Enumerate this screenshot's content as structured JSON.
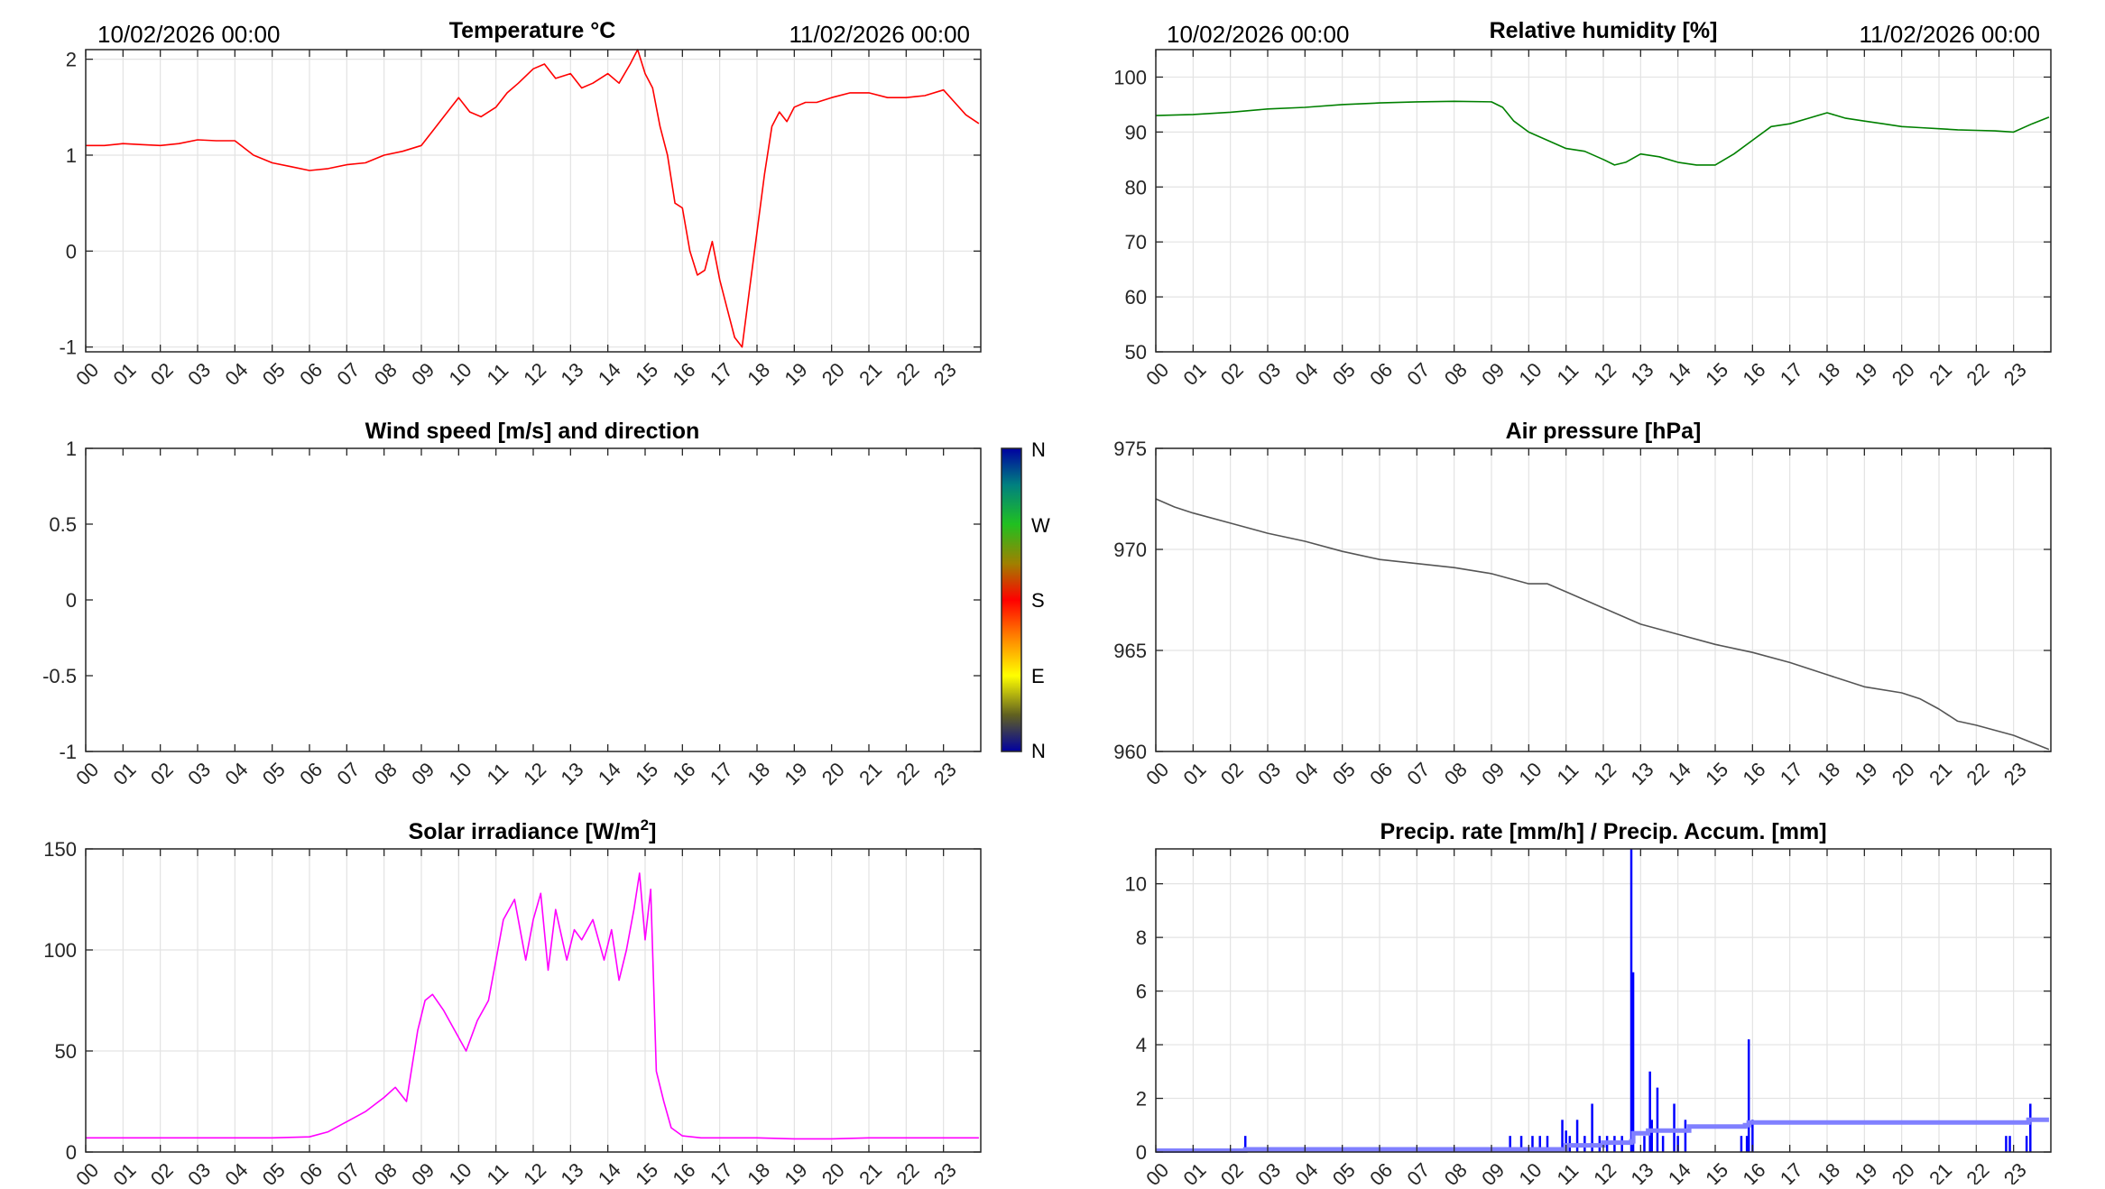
{
  "header": {
    "start_datetime": "10/02/2026 00:00",
    "end_datetime": "11/02/2026 00:00"
  },
  "hour_ticks": [
    "00",
    "01",
    "02",
    "03",
    "04",
    "05",
    "06",
    "07",
    "08",
    "09",
    "10",
    "11",
    "12",
    "13",
    "14",
    "15",
    "16",
    "17",
    "18",
    "19",
    "20",
    "21",
    "22",
    "23"
  ],
  "colors": {
    "temperature": "#ff0000",
    "humidity": "#008000",
    "pressure": "#555555",
    "solar": "#ff00ff",
    "precip_rate": "#0000ff",
    "precip_accum": "#8080ff",
    "grid": "#e3e3e3",
    "axes": "#262626"
  },
  "wind": {
    "colorbar_labels": [
      "N",
      "W",
      "S",
      "E",
      "N"
    ]
  },
  "chart_data": [
    {
      "id": "temperature",
      "type": "line",
      "title": "Temperature °C",
      "xlabel": "",
      "ylabel": "",
      "xlim": [
        0,
        24
      ],
      "ylim": [
        -1.05,
        2.1
      ],
      "yticks": [
        -1,
        0,
        1,
        2
      ],
      "ytick_labels": [
        "-1",
        "0",
        "1",
        "2"
      ],
      "grid": true,
      "series": [
        {
          "x": [
            0,
            0.5,
            1,
            1.5,
            2,
            2.5,
            3,
            3.5,
            4,
            4.5,
            5,
            5.5,
            6,
            6.5,
            7,
            7.5,
            8,
            8.5,
            9,
            9.3,
            9.6,
            10,
            10.3,
            10.6,
            11,
            11.3,
            11.6,
            12,
            12.3,
            12.6,
            13,
            13.3,
            13.6,
            14,
            14.3,
            14.6,
            14.8,
            15,
            15.2,
            15.4,
            15.6,
            15.8,
            16,
            16.2,
            16.4,
            16.6,
            16.8,
            17,
            17.2,
            17.4,
            17.6,
            17.8,
            18,
            18.2,
            18.4,
            18.6,
            18.8,
            19,
            19.3,
            19.6,
            20,
            20.5,
            21,
            21.5,
            22,
            22.5,
            23,
            23.3,
            23.6,
            23.95
          ],
          "y": [
            1.1,
            1.1,
            1.12,
            1.11,
            1.1,
            1.12,
            1.16,
            1.15,
            1.15,
            1.0,
            0.92,
            0.88,
            0.84,
            0.86,
            0.9,
            0.92,
            1.0,
            1.04,
            1.1,
            1.25,
            1.4,
            1.6,
            1.45,
            1.4,
            1.5,
            1.65,
            1.75,
            1.9,
            1.95,
            1.8,
            1.85,
            1.7,
            1.75,
            1.85,
            1.75,
            1.95,
            2.1,
            1.85,
            1.7,
            1.3,
            1.0,
            0.5,
            0.45,
            0.0,
            -0.25,
            -0.2,
            0.1,
            -0.3,
            -0.6,
            -0.9,
            -1.0,
            -0.4,
            0.2,
            0.8,
            1.3,
            1.45,
            1.35,
            1.5,
            1.55,
            1.55,
            1.6,
            1.65,
            1.65,
            1.6,
            1.6,
            1.62,
            1.68,
            1.55,
            1.42,
            1.33
          ]
        }
      ]
    },
    {
      "id": "humidity",
      "type": "line",
      "title": "Relative humidity [%]",
      "xlabel": "",
      "ylabel": "",
      "xlim": [
        0,
        24
      ],
      "ylim": [
        50,
        105
      ],
      "yticks": [
        50,
        60,
        70,
        80,
        90,
        100
      ],
      "ytick_labels": [
        "50",
        "60",
        "70",
        "80",
        "90",
        "100"
      ],
      "grid": true,
      "series": [
        {
          "x": [
            0,
            1,
            2,
            3,
            4,
            5,
            6,
            7,
            8,
            9,
            9.3,
            9.6,
            10,
            10.5,
            11,
            11.5,
            12,
            12.3,
            12.6,
            13,
            13.5,
            14,
            14.5,
            15,
            15.5,
            16,
            16.5,
            17,
            17.5,
            18,
            18.5,
            19,
            19.5,
            20,
            20.5,
            21,
            21.5,
            22,
            22.5,
            23,
            23.5,
            23.95
          ],
          "y": [
            93,
            93.2,
            93.6,
            94.2,
            94.5,
            95,
            95.3,
            95.5,
            95.6,
            95.5,
            94.5,
            92,
            90,
            88.5,
            87,
            86.5,
            85,
            84,
            84.5,
            86,
            85.5,
            84.5,
            84,
            84,
            86,
            88.5,
            91,
            91.5,
            92.5,
            93.5,
            92.5,
            92,
            91.5,
            91,
            90.8,
            90.6,
            90.4,
            90.3,
            90.2,
            90,
            91.5,
            92.7
          ]
        }
      ]
    },
    {
      "id": "wind",
      "type": "scatter",
      "title": "Wind speed [m/s] and direction",
      "xlabel": "",
      "ylabel": "",
      "xlim": [
        0,
        24
      ],
      "ylim": [
        -1,
        1
      ],
      "yticks": [
        -1,
        -0.5,
        0,
        0.5,
        1
      ],
      "ytick_labels": [
        "-1",
        "-0.5",
        "0",
        "0.5",
        "1"
      ],
      "grid": false,
      "series": []
    },
    {
      "id": "pressure",
      "type": "line",
      "title": "Air pressure [hPa]",
      "xlabel": "",
      "ylabel": "",
      "xlim": [
        0,
        24
      ],
      "ylim": [
        960,
        975
      ],
      "yticks": [
        960,
        965,
        970,
        975
      ],
      "ytick_labels": [
        "960",
        "965",
        "970",
        "975"
      ],
      "grid": true,
      "series": [
        {
          "x": [
            0,
            0.5,
            1,
            2,
            3,
            4,
            5,
            6,
            7,
            8,
            9,
            10,
            10.5,
            11,
            12,
            13,
            14,
            15,
            16,
            17,
            18,
            19,
            20,
            20.5,
            21,
            21.5,
            22,
            23,
            23.95
          ],
          "y": [
            972.5,
            972.1,
            971.8,
            971.3,
            970.8,
            970.4,
            969.9,
            969.5,
            969.3,
            969.1,
            968.8,
            968.3,
            968.3,
            967.9,
            967.1,
            966.3,
            965.8,
            965.3,
            964.9,
            964.4,
            963.8,
            963.2,
            962.9,
            962.6,
            962.1,
            961.5,
            961.3,
            960.8,
            960.1
          ]
        }
      ]
    },
    {
      "id": "solar",
      "type": "line",
      "title": "Solar irradiance [W/m²]",
      "xlabel": "",
      "ylabel": "",
      "xlim": [
        0,
        24
      ],
      "ylim": [
        0,
        150
      ],
      "yticks": [
        0,
        50,
        100,
        150
      ],
      "ytick_labels": [
        "0",
        "50",
        "100",
        "150"
      ],
      "grid": true,
      "series": [
        {
          "x": [
            0,
            1,
            2,
            3,
            4,
            5,
            6,
            6.5,
            7,
            7.5,
            8,
            8.3,
            8.6,
            8.9,
            9.1,
            9.3,
            9.6,
            9.9,
            10.2,
            10.5,
            10.8,
            11.0,
            11.2,
            11.5,
            11.8,
            12.0,
            12.2,
            12.4,
            12.6,
            12.9,
            13.1,
            13.3,
            13.6,
            13.9,
            14.1,
            14.3,
            14.5,
            14.7,
            14.85,
            15.0,
            15.15,
            15.3,
            15.5,
            15.7,
            16.0,
            16.5,
            17,
            18,
            19,
            20,
            21,
            22,
            23,
            23.95
          ],
          "y": [
            7,
            7,
            7,
            7,
            7,
            7,
            7.5,
            10,
            15,
            20,
            27,
            32,
            25,
            60,
            75,
            78,
            70,
            60,
            50,
            65,
            75,
            95,
            115,
            125,
            95,
            115,
            128,
            90,
            120,
            95,
            110,
            105,
            115,
            95,
            110,
            85,
            100,
            120,
            138,
            105,
            130,
            40,
            25,
            12,
            8,
            7,
            7,
            7,
            6.5,
            6.5,
            7,
            7,
            7,
            7
          ]
        }
      ]
    },
    {
      "id": "precip",
      "type": "bar",
      "title": "Precip. rate [mm/h] / Precip. Accum. [mm]",
      "xlabel": "",
      "ylabel": "",
      "xlim": [
        0,
        24
      ],
      "ylim": [
        0,
        11.3
      ],
      "yticks": [
        0,
        2,
        4,
        6,
        8,
        10
      ],
      "ytick_labels": [
        "0",
        "2",
        "4",
        "6",
        "8",
        "10"
      ],
      "grid": true,
      "series": [
        {
          "name": "Precip. rate [mm/h]",
          "type": "bar",
          "x": [
            2.4,
            9.5,
            9.8,
            10.1,
            10.3,
            10.5,
            10.9,
            11.0,
            11.1,
            11.3,
            11.5,
            11.7,
            11.9,
            12.1,
            12.3,
            12.5,
            12.75,
            12.8,
            13.1,
            13.25,
            13.3,
            13.45,
            13.6,
            13.9,
            14.0,
            14.2,
            15.7,
            15.85,
            15.9,
            16.0,
            22.8,
            22.9,
            23.35,
            23.45
          ],
          "values": [
            0.6,
            0.6,
            0.6,
            0.6,
            0.6,
            0.6,
            1.2,
            0.8,
            0.6,
            1.2,
            0.6,
            1.8,
            0.6,
            0.6,
            0.6,
            0.6,
            11.3,
            6.7,
            0.6,
            3.0,
            1.2,
            2.4,
            0.6,
            1.8,
            0.6,
            1.2,
            0.6,
            0.6,
            4.2,
            1.2,
            0.6,
            0.6,
            0.6,
            1.8
          ]
        },
        {
          "name": "Precip. Accum. [mm]",
          "type": "line",
          "x": [
            0,
            2.3,
            2.4,
            10.9,
            11.0,
            12.0,
            12.75,
            12.8,
            13.2,
            14.3,
            15.8,
            15.9,
            16.2,
            23.3,
            23.4,
            23.95
          ],
          "values": [
            0.05,
            0.05,
            0.1,
            0.1,
            0.25,
            0.35,
            0.4,
            0.7,
            0.8,
            0.95,
            1.0,
            1.1,
            1.1,
            1.1,
            1.2,
            1.2
          ]
        }
      ]
    }
  ]
}
